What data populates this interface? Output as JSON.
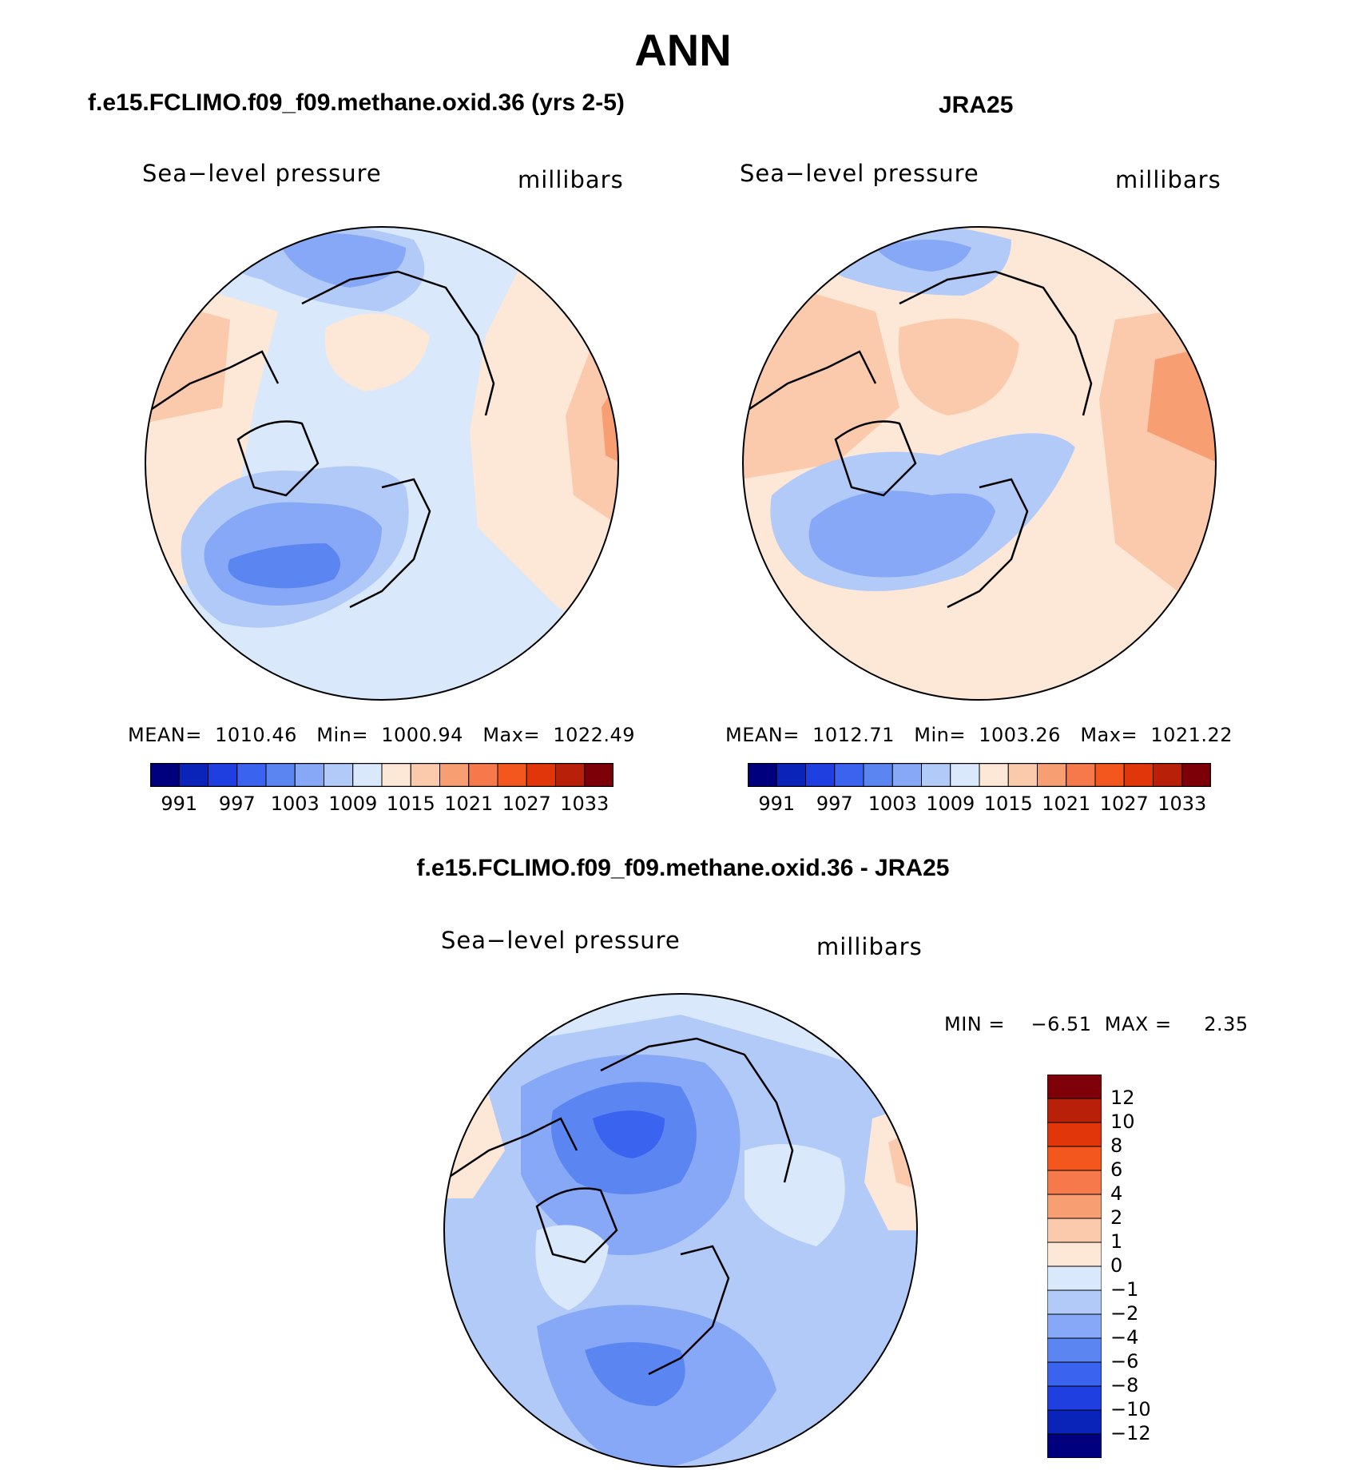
{
  "main_title": "ANN",
  "panels": [
    {
      "title": "f.e15.FCLIMO.f09_f09.methane.oxid.36 (yrs 2-5)",
      "variable": "Sea−level pressure",
      "units": "millibars",
      "stats": "MEAN=  1010.46   Min=  1000.94   Max=  1022.49"
    },
    {
      "title": "JRA25",
      "variable": "Sea−level pressure",
      "units": "millibars",
      "stats": "MEAN=  1012.71   Min=  1003.26   Max=  1021.22"
    },
    {
      "title": "f.e15.FCLIMO.f09_f09.methane.oxid.36 - JRA25",
      "variable": "Sea−level pressure",
      "units": "millibars",
      "stats": "MIN =    −6.51  MAX =     2.35"
    }
  ],
  "colorbar_levels": [
    "991",
    "997",
    "1003",
    "1009",
    "1015",
    "1021",
    "1027",
    "1033"
  ],
  "diff_colorbar_levels": [
    "12",
    "10",
    "8",
    "6",
    "4",
    "2",
    "1",
    "0",
    "−1",
    "−2",
    "−4",
    "−6",
    "−8",
    "−10",
    "−12"
  ],
  "colors": {
    "palette": [
      "#00007f",
      "#0a23b8",
      "#1f3fe0",
      "#3a63f0",
      "#5b86f2",
      "#86a8f6",
      "#b2caf8",
      "#d9e9fb",
      "#fde7d6",
      "#fbc9ac",
      "#f79e73",
      "#f5794b",
      "#f4571e",
      "#e13609",
      "#b8200a",
      "#7d0008"
    ],
    "land_line": "#000000"
  }
}
